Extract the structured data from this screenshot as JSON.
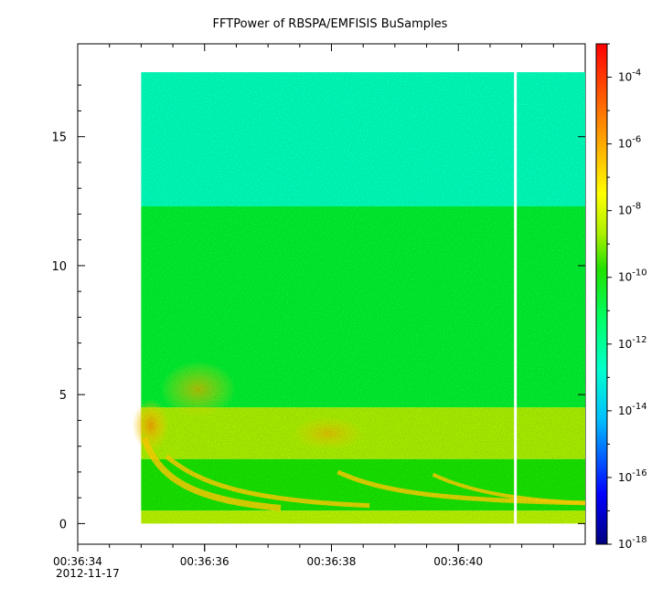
{
  "chart_data": {
    "type": "heatmap",
    "title": "FFTPower of RBSPA/EMFISIS  BuSamples",
    "xlabel": "",
    "ylabel": "",
    "x_ticks": [
      {
        "value": 34,
        "label": "00:36:34"
      },
      {
        "value": 36,
        "label": "00:36:36"
      },
      {
        "value": 38,
        "label": "00:36:38"
      },
      {
        "value": 40,
        "label": "00:36:40"
      }
    ],
    "x_date_label": "2012-11-17",
    "xlim_seconds_after_00_36_00": [
      34.0,
      42.0
    ],
    "ylim": [
      -0.8,
      18.6
    ],
    "y_ticks": [
      0,
      5,
      10,
      15
    ],
    "data_time_range_seconds": [
      35.0,
      42.0
    ],
    "data_y_range": [
      0,
      17.5
    ],
    "gap_time_seconds": 40.9,
    "colorbar": {
      "scale": "log",
      "range": [
        1e-18,
        0.001
      ],
      "tick_exponents": [
        -4,
        -6,
        -8,
        -10,
        -12,
        -14,
        -16,
        -18
      ],
      "tick_base": "10",
      "colors": [
        "#00007f",
        "#0000ff",
        "#00bfff",
        "#00ffcc",
        "#00ff66",
        "#22e000",
        "#aaf000",
        "#ffff00",
        "#ffaa00",
        "#ff5500",
        "#ff0000"
      ]
    },
    "z_regions": [
      {
        "y_from": 12.3,
        "y_to": 17.5,
        "log10_power": -12.5
      },
      {
        "y_from": 4.5,
        "y_to": 12.3,
        "log10_power": -10.5
      },
      {
        "y_from": 2.5,
        "y_to": 4.5,
        "log10_power": -8.7
      },
      {
        "y_from": 0.5,
        "y_to": 2.5,
        "log10_power": -10.0
      },
      {
        "y_from": 0.0,
        "y_to": 0.5,
        "log10_power": -8.5
      }
    ]
  }
}
